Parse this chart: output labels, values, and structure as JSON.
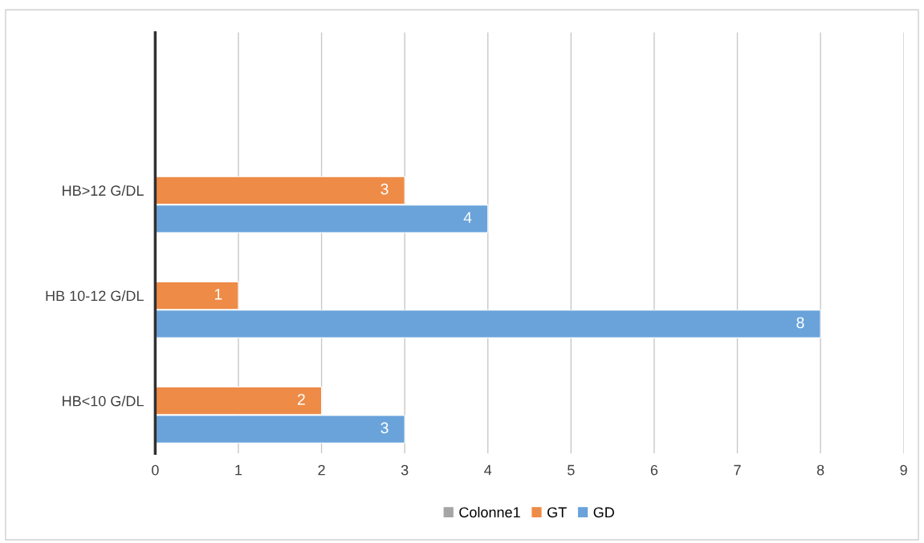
{
  "chart_data": {
    "type": "bar",
    "orientation": "horizontal",
    "categories": [
      null,
      "HB>12 G/DL",
      "HB 10-12 G/DL",
      "HB<10 G/DL"
    ],
    "series": [
      {
        "name": "Colonne1",
        "color": "#a5a5a5",
        "values": [
          null,
          null,
          null,
          null
        ]
      },
      {
        "name": "GT",
        "color": "#ee8b47",
        "values": [
          null,
          3,
          1,
          2
        ]
      },
      {
        "name": "GD",
        "color": "#69a3da",
        "values": [
          null,
          4,
          8,
          3
        ]
      }
    ],
    "xlim": [
      0,
      9
    ],
    "xticks": [
      0,
      1,
      2,
      3,
      4,
      5,
      6,
      7,
      8,
      9
    ],
    "grid": "x",
    "legend": "bottom",
    "data_labels": true
  }
}
